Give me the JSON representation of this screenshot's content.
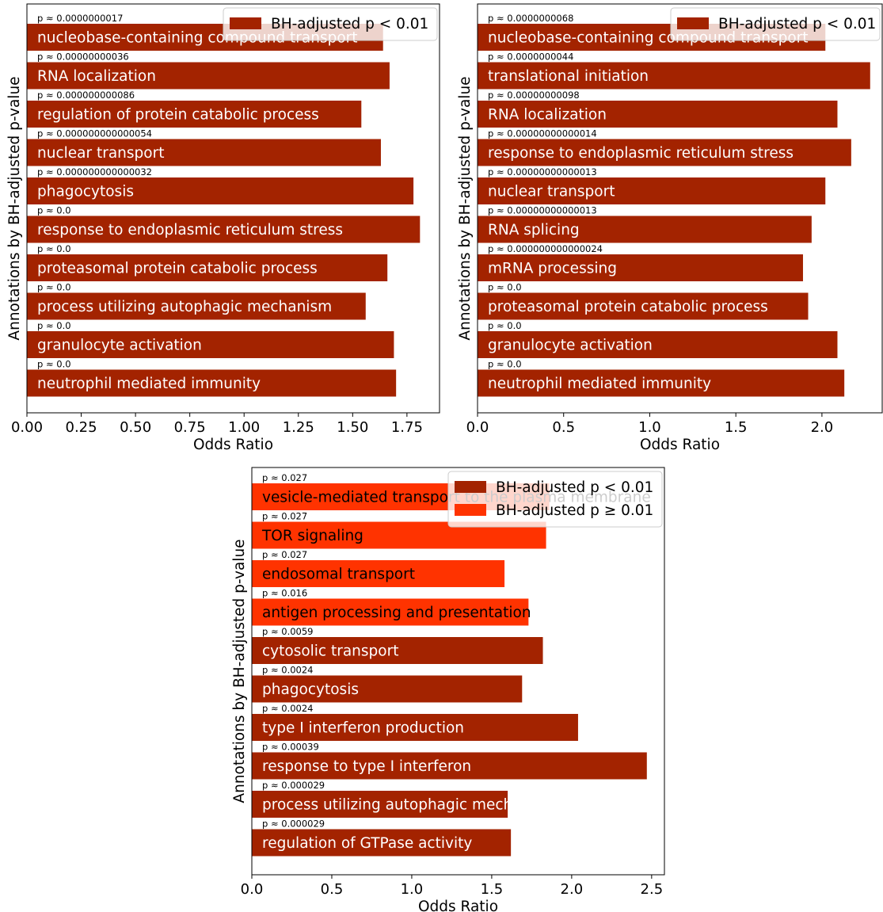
{
  "colors": {
    "sig": "#a32300",
    "nonsig": "#ff3300",
    "text_on_bar": "#ffffff",
    "text_dark": "#000000"
  },
  "chart_data": [
    {
      "type": "bar",
      "orientation": "horizontal",
      "xlabel": "Odds Ratio",
      "ylabel": "Annotations by BH-adjusted p-value",
      "xlim": [
        0,
        1.9
      ],
      "xticks": [
        "0.00",
        "0.25",
        "0.50",
        "0.75",
        "1.00",
        "1.25",
        "1.50",
        "1.75"
      ],
      "xtick_values": [
        0,
        0.25,
        0.5,
        0.75,
        1.0,
        1.25,
        1.5,
        1.75
      ],
      "legend": [
        {
          "label": "BH-adjusted p < 0.01",
          "series": "sig"
        }
      ],
      "legend_location": "top-right",
      "bars": [
        {
          "label": "nucleobase-containing compound transport",
          "p": "p ≈ 0.0000000017",
          "value": 1.64,
          "series": "sig"
        },
        {
          "label": "RNA localization",
          "p": "p ≈ 0.00000000036",
          "value": 1.67,
          "series": "sig"
        },
        {
          "label": "regulation of protein catabolic process",
          "p": "p ≈ 0.000000000086",
          "value": 1.54,
          "series": "sig"
        },
        {
          "label": "nuclear transport",
          "p": "p ≈ 0.000000000000054",
          "value": 1.63,
          "series": "sig"
        },
        {
          "label": "phagocytosis",
          "p": "p ≈ 0.000000000000032",
          "value": 1.78,
          "series": "sig"
        },
        {
          "label": "response to endoplasmic reticulum stress",
          "p": "p ≈ 0.0",
          "value": 1.81,
          "series": "sig"
        },
        {
          "label": "proteasomal protein catabolic process",
          "p": "p ≈ 0.0",
          "value": 1.66,
          "series": "sig"
        },
        {
          "label": "process utilizing autophagic mechanism",
          "p": "p ≈ 0.0",
          "value": 1.56,
          "series": "sig"
        },
        {
          "label": "granulocyte activation",
          "p": "p ≈ 0.0",
          "value": 1.69,
          "series": "sig"
        },
        {
          "label": "neutrophil mediated immunity",
          "p": "p ≈ 0.0",
          "value": 1.7,
          "series": "sig"
        }
      ]
    },
    {
      "type": "bar",
      "orientation": "horizontal",
      "xlabel": "Odds Ratio",
      "ylabel": "Annotations by BH-adjusted p-value",
      "xlim": [
        0,
        2.35
      ],
      "xticks": [
        "0.0",
        "0.5",
        "1.0",
        "1.5",
        "2.0"
      ],
      "xtick_values": [
        0,
        0.5,
        1.0,
        1.5,
        2.0
      ],
      "legend": [
        {
          "label": "BH-adjusted p < 0.01",
          "series": "sig"
        }
      ],
      "legend_location": "top-right",
      "bars": [
        {
          "label": "nucleobase-containing compound transport",
          "p": "p ≈ 0.0000000068",
          "value": 2.02,
          "series": "sig"
        },
        {
          "label": "translational initiation",
          "p": "p ≈ 0.0000000044",
          "value": 2.28,
          "series": "sig"
        },
        {
          "label": "RNA localization",
          "p": "p ≈ 0.00000000098",
          "value": 2.09,
          "series": "sig"
        },
        {
          "label": "response to endoplasmic reticulum stress",
          "p": "p ≈ 0.00000000000014",
          "value": 2.17,
          "series": "sig"
        },
        {
          "label": "nuclear transport",
          "p": "p ≈ 0.00000000000013",
          "value": 2.02,
          "series": "sig"
        },
        {
          "label": "RNA splicing",
          "p": "p ≈ 0.00000000000013",
          "value": 1.94,
          "series": "sig"
        },
        {
          "label": "mRNA processing",
          "p": "p ≈ 0.000000000000024",
          "value": 1.89,
          "series": "sig"
        },
        {
          "label": "proteasomal protein catabolic process",
          "p": "p ≈ 0.0",
          "value": 1.92,
          "series": "sig"
        },
        {
          "label": "granulocyte activation",
          "p": "p ≈ 0.0",
          "value": 2.09,
          "series": "sig"
        },
        {
          "label": "neutrophil mediated immunity",
          "p": "p ≈ 0.0",
          "value": 2.13,
          "series": "sig"
        }
      ]
    },
    {
      "type": "bar",
      "orientation": "horizontal",
      "xlabel": "Odds Ratio",
      "ylabel": "Annotations by BH-adjusted p-value",
      "xlim": [
        0,
        2.58
      ],
      "xticks": [
        "0.0",
        "0.5",
        "1.0",
        "1.5",
        "2.0",
        "2.5"
      ],
      "xtick_values": [
        0,
        0.5,
        1.0,
        1.5,
        2.0,
        2.5
      ],
      "legend": [
        {
          "label": "BH-adjusted p < 0.01",
          "series": "sig"
        },
        {
          "label": "BH-adjusted p ≥ 0.01",
          "series": "nonsig"
        }
      ],
      "legend_location": "top-right",
      "bars": [
        {
          "label": "vesicle-mediated transport to the plasma membrane",
          "p": "p ≈ 0.027",
          "value": 1.86,
          "series": "nonsig"
        },
        {
          "label": "TOR signaling",
          "p": "p ≈ 0.027",
          "value": 1.84,
          "series": "nonsig"
        },
        {
          "label": "endosomal transport",
          "p": "p ≈ 0.027",
          "value": 1.58,
          "series": "nonsig"
        },
        {
          "label": "antigen processing and presentation",
          "p": "p ≈ 0.016",
          "value": 1.73,
          "series": "nonsig"
        },
        {
          "label": "cytosolic transport",
          "p": "p ≈ 0.0059",
          "value": 1.82,
          "series": "sig"
        },
        {
          "label": "phagocytosis",
          "p": "p ≈ 0.0024",
          "value": 1.69,
          "series": "sig"
        },
        {
          "label": "type I interferon production",
          "p": "p ≈ 0.0024",
          "value": 2.04,
          "series": "sig"
        },
        {
          "label": "response to type I interferon",
          "p": "p ≈ 0.00039",
          "value": 2.47,
          "series": "sig"
        },
        {
          "label": "process utilizing autophagic mechanism",
          "p": "p ≈ 0.000029",
          "value": 1.6,
          "series": "sig"
        },
        {
          "label": "regulation of GTPase activity",
          "p": "p ≈ 0.000029",
          "value": 1.62,
          "series": "sig"
        }
      ]
    }
  ]
}
